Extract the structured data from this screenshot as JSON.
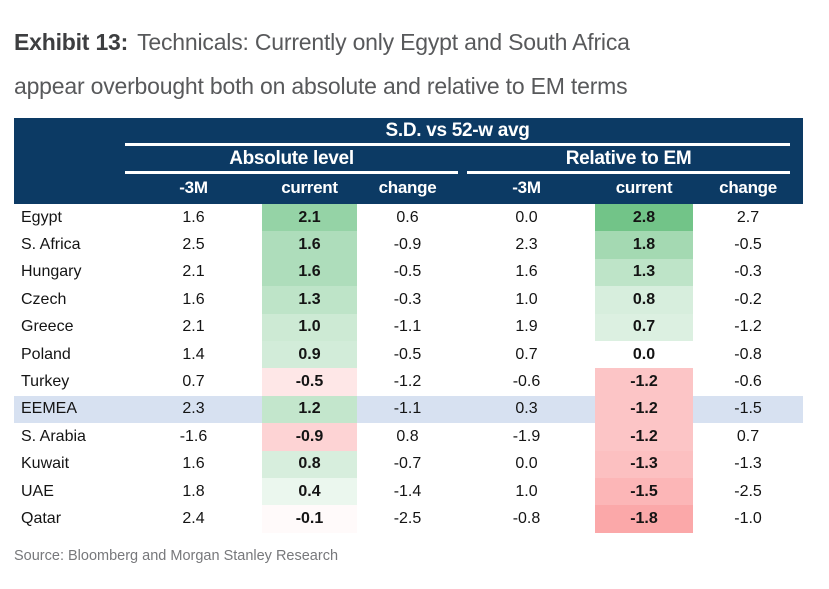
{
  "title": {
    "exhibit_label": "Exhibit 13:",
    "line1": "Technicals: Currently only Egypt and South Africa",
    "line2": "appear overbought both on absolute and relative to EM terms"
  },
  "source_note": "Source: Bloomberg and Morgan Stanley Research",
  "colors": {
    "header_navy": "#0C3A64",
    "row_highlight_blue": "#D7E1F1",
    "scale_positive_end": "#63BE7B",
    "scale_negative_end": "#F8696B",
    "scale_midpoint": "#FFFFFF",
    "title_gray": "#58595B",
    "source_gray": "#77787B"
  },
  "chart_data": {
    "type": "table",
    "title": "Exhibit 13: Technicals: Currently only Egypt and South Africa appear overbought both on absolute and relative to EM terms",
    "unit_header": "S.D. vs 52-w avg",
    "column_groups": [
      "Absolute level",
      "Relative to EM"
    ],
    "sub_columns": [
      "-3M",
      "current",
      "change"
    ],
    "value_columns": [
      "abs_-3M",
      "abs_current",
      "abs_change",
      "rel_-3M",
      "rel_current",
      "rel_change"
    ],
    "highlighted_row": "EEMEA",
    "color_scale_note": "current columns shaded diverging green (positive) to red (negative), white at 0",
    "scale_max_abs": 3.1,
    "rows": [
      {
        "name": "Egypt",
        "values": [
          1.6,
          2.1,
          0.6,
          0.0,
          2.8,
          2.7
        ]
      },
      {
        "name": "S. Africa",
        "values": [
          2.5,
          1.6,
          -0.9,
          2.3,
          1.8,
          -0.5
        ]
      },
      {
        "name": "Hungary",
        "values": [
          2.1,
          1.6,
          -0.5,
          1.6,
          1.3,
          -0.3
        ]
      },
      {
        "name": "Czech",
        "values": [
          1.6,
          1.3,
          -0.3,
          1.0,
          0.8,
          -0.2
        ]
      },
      {
        "name": "Greece",
        "values": [
          2.1,
          1.0,
          -1.1,
          1.9,
          0.7,
          -1.2
        ]
      },
      {
        "name": "Poland",
        "values": [
          1.4,
          0.9,
          -0.5,
          0.7,
          0.0,
          -0.8
        ]
      },
      {
        "name": "Turkey",
        "values": [
          0.7,
          -0.5,
          -1.2,
          -0.6,
          -1.2,
          -0.6
        ]
      },
      {
        "name": "EEMEA",
        "values": [
          2.3,
          1.2,
          -1.1,
          0.3,
          -1.2,
          -1.5
        ]
      },
      {
        "name": "S. Arabia",
        "values": [
          -1.6,
          -0.9,
          0.8,
          -1.9,
          -1.2,
          0.7
        ]
      },
      {
        "name": "Kuwait",
        "values": [
          1.6,
          0.8,
          -0.7,
          0.0,
          -1.3,
          -1.3
        ]
      },
      {
        "name": "UAE",
        "values": [
          1.8,
          0.4,
          -1.4,
          1.0,
          -1.5,
          -2.5
        ]
      },
      {
        "name": "Qatar",
        "values": [
          2.4,
          -0.1,
          -2.5,
          -0.8,
          -1.8,
          -1.0
        ]
      }
    ],
    "source": "Source: Bloomberg and Morgan Stanley Research"
  }
}
